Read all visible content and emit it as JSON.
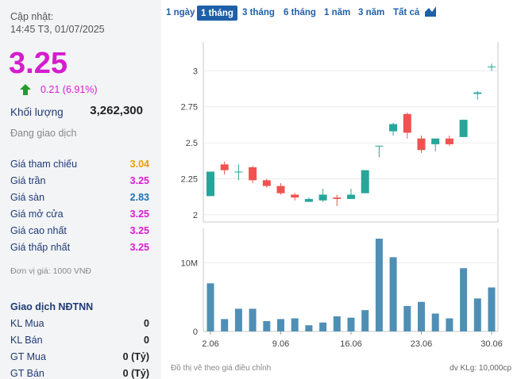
{
  "left": {
    "updated_label": "Cập nhật:",
    "updated_time": "14:45 T3, 01/07/2025",
    "price": "3.25",
    "change": "0.21 (6.91%)",
    "volume_label": "Khối lượng",
    "volume_value": "3,262,300",
    "status": "Đang giao dịch",
    "stats": [
      {
        "label": "Giá tham chiếu",
        "value": "3.04",
        "color": "#e6a100"
      },
      {
        "label": "Giá trần",
        "value": "3.25",
        "color": "#d61ccf"
      },
      {
        "label": "Giá sàn",
        "value": "2.83",
        "color": "#1d6fb0"
      },
      {
        "label": "Giá mở cửa",
        "value": "3.25",
        "color": "#d61ccf"
      },
      {
        "label": "Giá cao nhất",
        "value": "3.25",
        "color": "#d61ccf"
      },
      {
        "label": "Giá thấp nhất",
        "value": "3.25",
        "color": "#d61ccf"
      }
    ],
    "unit_note": "Đơn vị giá: 1000 VNĐ",
    "foreign_title": "Giao dịch NĐTNN",
    "foreign": [
      {
        "label": "KL Mua",
        "value": "0"
      },
      {
        "label": "KL Bán",
        "value": "0"
      },
      {
        "label": "GT Mua",
        "value": "0 (Tỷ)"
      },
      {
        "label": "GT Bán",
        "value": "0 (Tỷ)"
      }
    ]
  },
  "tabs": [
    "1 ngày",
    "1 tháng",
    "3 tháng",
    "6 tháng",
    "1 năm",
    "3 năm",
    "Tất cả"
  ],
  "active_tab": "1 tháng",
  "footer_left": "Đồ thị vẽ theo giá điều chỉnh",
  "footer_right": "dv KLg: 10,000cp",
  "colors": {
    "up": "#26a69a",
    "down": "#ef5350",
    "volume": "#4f8fb5",
    "accent": "#1f5fa8"
  },
  "chart_data": {
    "type": "candlestick",
    "price_ticks": [
      "2",
      "2.25",
      "2.5",
      "2.75",
      "3"
    ],
    "price_range": [
      1.95,
      3.2
    ],
    "volume_ticks": [
      "0",
      "10M"
    ],
    "volume_range": [
      0,
      15
    ],
    "x_tick_labels": [
      {
        "label": "2.06",
        "index": 0
      },
      {
        "label": "9.06",
        "index": 5
      },
      {
        "label": "16.06",
        "index": 10
      },
      {
        "label": "23.06",
        "index": 15
      },
      {
        "label": "30.06",
        "index": 20
      }
    ],
    "candles": [
      {
        "o": 2.13,
        "h": 2.3,
        "l": 2.13,
        "c": 2.3,
        "v": 7.0
      },
      {
        "o": 2.35,
        "h": 2.37,
        "l": 2.28,
        "c": 2.31,
        "v": 1.8
      },
      {
        "o": 2.3,
        "h": 2.35,
        "l": 2.24,
        "c": 2.3,
        "v": 3.3
      },
      {
        "o": 2.33,
        "h": 2.34,
        "l": 2.22,
        "c": 2.24,
        "v": 3.3
      },
      {
        "o": 2.24,
        "h": 2.25,
        "l": 2.19,
        "c": 2.2,
        "v": 1.5
      },
      {
        "o": 2.2,
        "h": 2.22,
        "l": 2.14,
        "c": 2.15,
        "v": 1.8
      },
      {
        "o": 2.14,
        "h": 2.15,
        "l": 2.1,
        "c": 2.12,
        "v": 1.9
      },
      {
        "o": 2.09,
        "h": 2.12,
        "l": 2.09,
        "c": 2.11,
        "v": 0.9
      },
      {
        "o": 2.1,
        "h": 2.18,
        "l": 2.09,
        "c": 2.14,
        "v": 1.3
      },
      {
        "o": 2.12,
        "h": 2.14,
        "l": 2.06,
        "c": 2.11,
        "v": 2.2
      },
      {
        "o": 2.11,
        "h": 2.18,
        "l": 2.11,
        "c": 2.14,
        "v": 2.0
      },
      {
        "o": 2.15,
        "h": 2.31,
        "l": 2.15,
        "c": 2.31,
        "v": 3.1
      },
      {
        "o": 2.48,
        "h": 2.48,
        "l": 2.4,
        "c": 2.48,
        "v": 13.5
      },
      {
        "o": 2.58,
        "h": 2.64,
        "l": 2.55,
        "c": 2.63,
        "v": 10.8
      },
      {
        "o": 2.7,
        "h": 2.71,
        "l": 2.53,
        "c": 2.57,
        "v": 3.7
      },
      {
        "o": 2.53,
        "h": 2.55,
        "l": 2.43,
        "c": 2.45,
        "v": 4.3
      },
      {
        "o": 2.49,
        "h": 2.53,
        "l": 2.44,
        "c": 2.53,
        "v": 2.6
      },
      {
        "o": 2.53,
        "h": 2.55,
        "l": 2.48,
        "c": 2.49,
        "v": 1.9
      },
      {
        "o": 2.54,
        "h": 2.66,
        "l": 2.54,
        "c": 2.66,
        "v": 9.2
      },
      {
        "o": 2.84,
        "h": 2.86,
        "l": 2.8,
        "c": 2.85,
        "v": 4.8
      },
      {
        "o": 3.03,
        "h": 3.05,
        "l": 3.0,
        "c": 3.03,
        "v": 6.4
      }
    ]
  }
}
